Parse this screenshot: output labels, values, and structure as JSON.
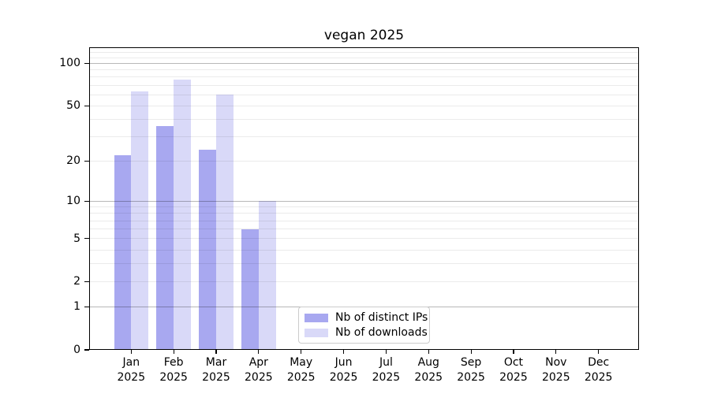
{
  "chart_data": {
    "type": "bar",
    "title": "vegan 2025",
    "categories": [
      "Jan",
      "Feb",
      "Mar",
      "Apr",
      "May",
      "Jun",
      "Jul",
      "Aug",
      "Sep",
      "Oct",
      "Nov",
      "Dec"
    ],
    "category_year": "2025",
    "series": [
      {
        "name": "Nb of distinct IPs",
        "color": "#a8a8f0",
        "values": [
          22,
          36,
          24,
          6,
          null,
          null,
          null,
          null,
          null,
          null,
          null,
          null
        ]
      },
      {
        "name": "Nb of downloads",
        "color": "#d9d9f8",
        "values": [
          63,
          77,
          60,
          10,
          null,
          null,
          null,
          null,
          null,
          null,
          null,
          null
        ]
      }
    ],
    "y_axis": {
      "scale": "log10(1+v)",
      "min": 0,
      "max": 130,
      "tick_values": [
        0,
        1,
        2,
        5,
        10,
        20,
        50,
        100
      ],
      "major_grid_values": [
        1,
        10,
        100
      ],
      "minor_grid_values": [
        2,
        3,
        4,
        5,
        6,
        7,
        8,
        9,
        20,
        30,
        40,
        50,
        60,
        70,
        80,
        90,
        110,
        120
      ]
    },
    "x_axis": {
      "tick_label_lines": 2
    },
    "legend": {
      "position": "lower center",
      "entries": [
        "Nb of distinct IPs",
        "Nb of downloads"
      ]
    },
    "grid": true
  },
  "colors": {
    "background": "#ffffff",
    "axis": "#000000",
    "text": "#000000",
    "major_grid": "rgba(0,0,0,0.28)",
    "minor_grid": "rgba(0,0,0,0.08)",
    "legend_border": "#cccccc",
    "series_ips": "#a8a8f0",
    "series_downloads": "#d9d9f8"
  }
}
